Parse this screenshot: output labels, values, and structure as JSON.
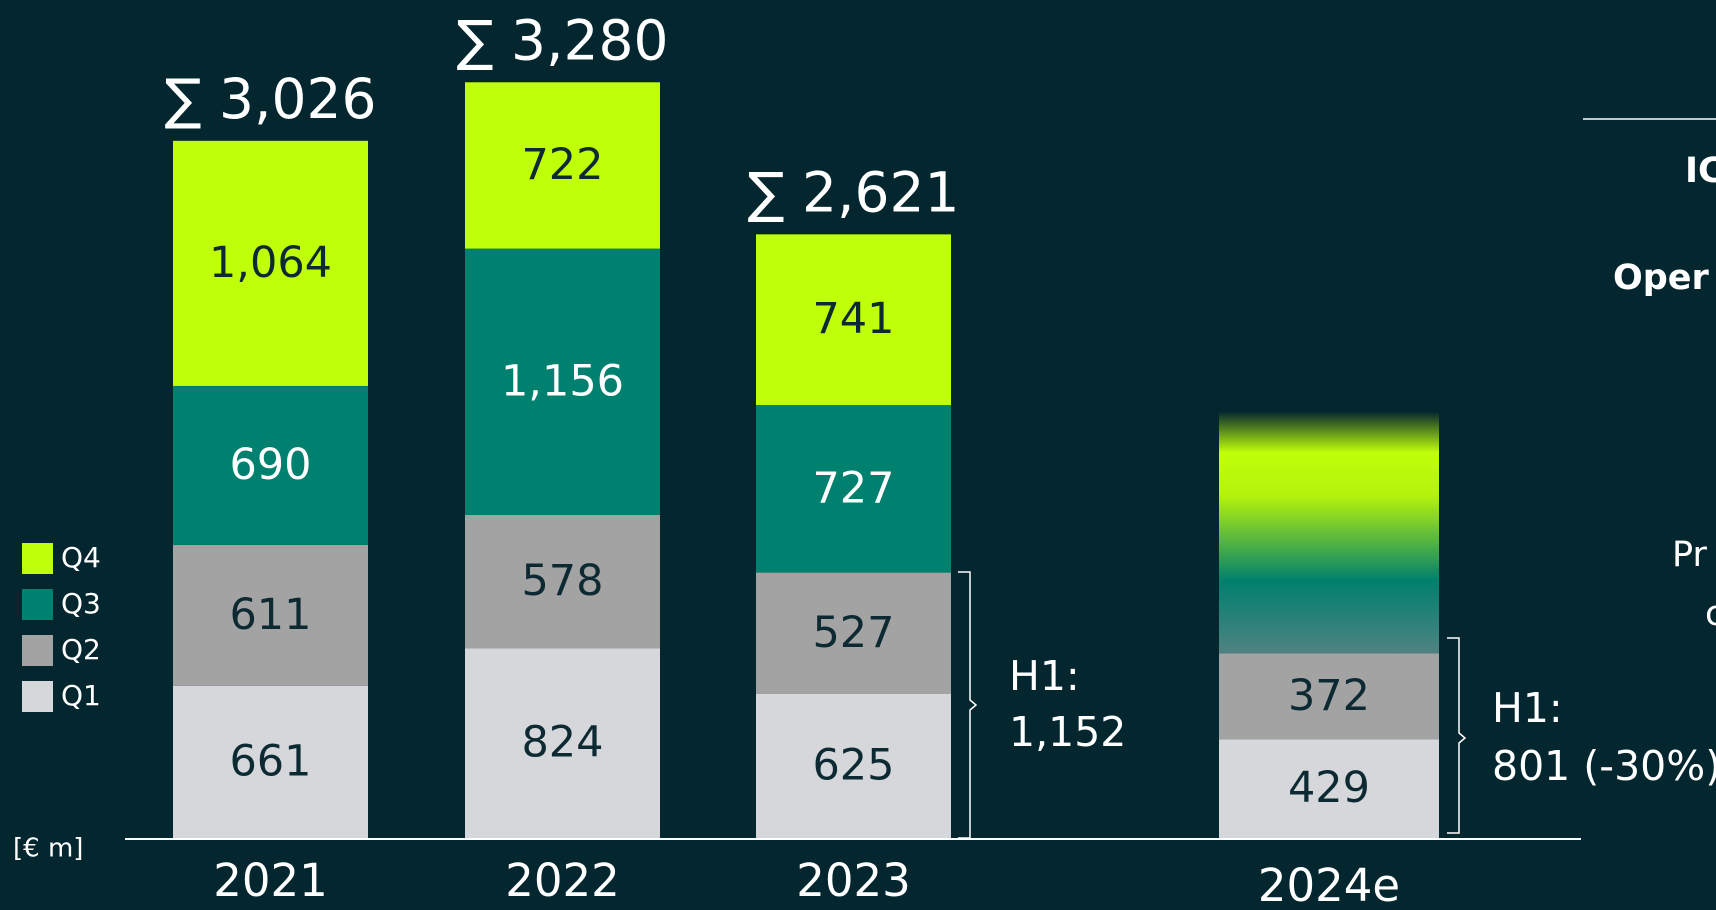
{
  "chart_data": {
    "type": "bar",
    "stacked": true,
    "unit_label": "[€ m]",
    "categories": [
      "2021",
      "2022",
      "2023",
      "2024e"
    ],
    "series": [
      {
        "name": "Q1",
        "color": "#d5d7db",
        "values": [
          661,
          824,
          625,
          429
        ]
      },
      {
        "name": "Q2",
        "color": "#a3a3a3",
        "values": [
          611,
          578,
          527,
          372
        ]
      },
      {
        "name": "Q3",
        "color": "#00806e",
        "values": [
          690,
          1156,
          727,
          null
        ],
        "value_labels": [
          "690",
          "1,156",
          "727",
          null
        ]
      },
      {
        "name": "Q4",
        "color": "#c0ff0a",
        "values": [
          1064,
          722,
          741,
          null
        ],
        "value_labels": [
          "1,064",
          "722",
          "741",
          null
        ]
      }
    ],
    "totals": [
      "∑ 3,026",
      "∑ 3,280",
      "∑ 2,621",
      null
    ],
    "h1_2023": [
      "H1:",
      "1,152"
    ],
    "h1_2024e": [
      "H1:",
      "801 (-30%)"
    ],
    "side_texts": [
      "IC",
      "Oper",
      "Pr",
      "c"
    ]
  }
}
